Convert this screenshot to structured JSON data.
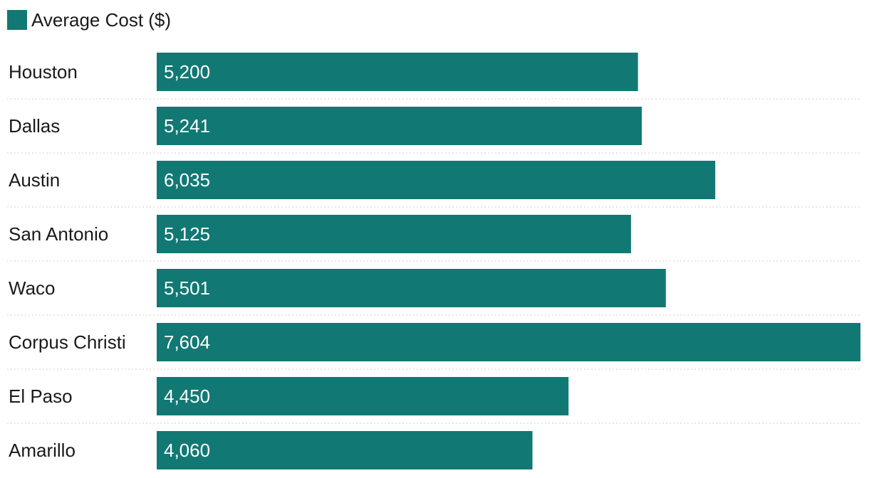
{
  "chart_data": {
    "type": "bar",
    "orientation": "horizontal",
    "categories": [
      "Houston",
      "Dallas",
      "Austin",
      "San Antonio",
      "Waco",
      "Corpus Christi",
      "El Paso",
      "Amarillo"
    ],
    "series": [
      {
        "name": "Average Cost ($)",
        "values": [
          5200,
          5241,
          6035,
          5125,
          5501,
          7604,
          4450,
          4060
        ],
        "value_labels": [
          "5,200",
          "5,241",
          "6,035",
          "5,125",
          "5,501",
          "7,604",
          "4,450",
          "4,060"
        ]
      }
    ],
    "xlim": [
      0,
      7604
    ],
    "grid": false,
    "legend_position": "top-left"
  },
  "legend": {
    "label": "Average Cost ($)"
  },
  "colors": {
    "bar": "#127874",
    "text": "#1a1a1a",
    "value_text": "#ffffff",
    "separator": "#cfcfcf"
  }
}
